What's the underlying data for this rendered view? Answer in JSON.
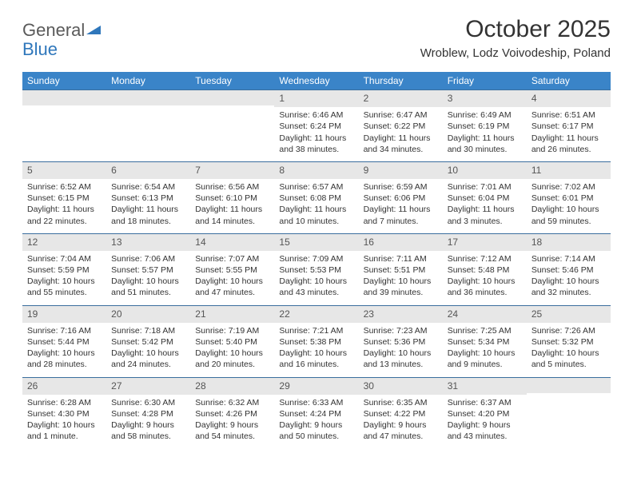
{
  "logo": {
    "line1": "General",
    "line2": "Blue"
  },
  "title": "October 2025",
  "location": "Wroblew, Lodz Voivodeship, Poland",
  "colors": {
    "header_bg": "#3a84c8",
    "header_text": "#ffffff",
    "daynum_bg": "#e7e7e7",
    "daynum_text": "#555555",
    "row_border": "#3a6e9e",
    "body_text": "#333333",
    "logo_gray": "#5a5a5a",
    "logo_blue": "#2f77bb",
    "page_bg": "#ffffff"
  },
  "typography": {
    "title_fontsize": 30,
    "location_fontsize": 15,
    "weekday_fontsize": 12,
    "daynum_fontsize": 12,
    "cell_fontsize": 10.5
  },
  "weekdays": [
    "Sunday",
    "Monday",
    "Tuesday",
    "Wednesday",
    "Thursday",
    "Friday",
    "Saturday"
  ],
  "weeks": [
    [
      {
        "num": "",
        "sunrise": "",
        "sunset": "",
        "daylight": ""
      },
      {
        "num": "",
        "sunrise": "",
        "sunset": "",
        "daylight": ""
      },
      {
        "num": "",
        "sunrise": "",
        "sunset": "",
        "daylight": ""
      },
      {
        "num": "1",
        "sunrise": "Sunrise: 6:46 AM",
        "sunset": "Sunset: 6:24 PM",
        "daylight": "Daylight: 11 hours and 38 minutes."
      },
      {
        "num": "2",
        "sunrise": "Sunrise: 6:47 AM",
        "sunset": "Sunset: 6:22 PM",
        "daylight": "Daylight: 11 hours and 34 minutes."
      },
      {
        "num": "3",
        "sunrise": "Sunrise: 6:49 AM",
        "sunset": "Sunset: 6:19 PM",
        "daylight": "Daylight: 11 hours and 30 minutes."
      },
      {
        "num": "4",
        "sunrise": "Sunrise: 6:51 AM",
        "sunset": "Sunset: 6:17 PM",
        "daylight": "Daylight: 11 hours and 26 minutes."
      }
    ],
    [
      {
        "num": "5",
        "sunrise": "Sunrise: 6:52 AM",
        "sunset": "Sunset: 6:15 PM",
        "daylight": "Daylight: 11 hours and 22 minutes."
      },
      {
        "num": "6",
        "sunrise": "Sunrise: 6:54 AM",
        "sunset": "Sunset: 6:13 PM",
        "daylight": "Daylight: 11 hours and 18 minutes."
      },
      {
        "num": "7",
        "sunrise": "Sunrise: 6:56 AM",
        "sunset": "Sunset: 6:10 PM",
        "daylight": "Daylight: 11 hours and 14 minutes."
      },
      {
        "num": "8",
        "sunrise": "Sunrise: 6:57 AM",
        "sunset": "Sunset: 6:08 PM",
        "daylight": "Daylight: 11 hours and 10 minutes."
      },
      {
        "num": "9",
        "sunrise": "Sunrise: 6:59 AM",
        "sunset": "Sunset: 6:06 PM",
        "daylight": "Daylight: 11 hours and 7 minutes."
      },
      {
        "num": "10",
        "sunrise": "Sunrise: 7:01 AM",
        "sunset": "Sunset: 6:04 PM",
        "daylight": "Daylight: 11 hours and 3 minutes."
      },
      {
        "num": "11",
        "sunrise": "Sunrise: 7:02 AM",
        "sunset": "Sunset: 6:01 PM",
        "daylight": "Daylight: 10 hours and 59 minutes."
      }
    ],
    [
      {
        "num": "12",
        "sunrise": "Sunrise: 7:04 AM",
        "sunset": "Sunset: 5:59 PM",
        "daylight": "Daylight: 10 hours and 55 minutes."
      },
      {
        "num": "13",
        "sunrise": "Sunrise: 7:06 AM",
        "sunset": "Sunset: 5:57 PM",
        "daylight": "Daylight: 10 hours and 51 minutes."
      },
      {
        "num": "14",
        "sunrise": "Sunrise: 7:07 AM",
        "sunset": "Sunset: 5:55 PM",
        "daylight": "Daylight: 10 hours and 47 minutes."
      },
      {
        "num": "15",
        "sunrise": "Sunrise: 7:09 AM",
        "sunset": "Sunset: 5:53 PM",
        "daylight": "Daylight: 10 hours and 43 minutes."
      },
      {
        "num": "16",
        "sunrise": "Sunrise: 7:11 AM",
        "sunset": "Sunset: 5:51 PM",
        "daylight": "Daylight: 10 hours and 39 minutes."
      },
      {
        "num": "17",
        "sunrise": "Sunrise: 7:12 AM",
        "sunset": "Sunset: 5:48 PM",
        "daylight": "Daylight: 10 hours and 36 minutes."
      },
      {
        "num": "18",
        "sunrise": "Sunrise: 7:14 AM",
        "sunset": "Sunset: 5:46 PM",
        "daylight": "Daylight: 10 hours and 32 minutes."
      }
    ],
    [
      {
        "num": "19",
        "sunrise": "Sunrise: 7:16 AM",
        "sunset": "Sunset: 5:44 PM",
        "daylight": "Daylight: 10 hours and 28 minutes."
      },
      {
        "num": "20",
        "sunrise": "Sunrise: 7:18 AM",
        "sunset": "Sunset: 5:42 PM",
        "daylight": "Daylight: 10 hours and 24 minutes."
      },
      {
        "num": "21",
        "sunrise": "Sunrise: 7:19 AM",
        "sunset": "Sunset: 5:40 PM",
        "daylight": "Daylight: 10 hours and 20 minutes."
      },
      {
        "num": "22",
        "sunrise": "Sunrise: 7:21 AM",
        "sunset": "Sunset: 5:38 PM",
        "daylight": "Daylight: 10 hours and 16 minutes."
      },
      {
        "num": "23",
        "sunrise": "Sunrise: 7:23 AM",
        "sunset": "Sunset: 5:36 PM",
        "daylight": "Daylight: 10 hours and 13 minutes."
      },
      {
        "num": "24",
        "sunrise": "Sunrise: 7:25 AM",
        "sunset": "Sunset: 5:34 PM",
        "daylight": "Daylight: 10 hours and 9 minutes."
      },
      {
        "num": "25",
        "sunrise": "Sunrise: 7:26 AM",
        "sunset": "Sunset: 5:32 PM",
        "daylight": "Daylight: 10 hours and 5 minutes."
      }
    ],
    [
      {
        "num": "26",
        "sunrise": "Sunrise: 6:28 AM",
        "sunset": "Sunset: 4:30 PM",
        "daylight": "Daylight: 10 hours and 1 minute."
      },
      {
        "num": "27",
        "sunrise": "Sunrise: 6:30 AM",
        "sunset": "Sunset: 4:28 PM",
        "daylight": "Daylight: 9 hours and 58 minutes."
      },
      {
        "num": "28",
        "sunrise": "Sunrise: 6:32 AM",
        "sunset": "Sunset: 4:26 PM",
        "daylight": "Daylight: 9 hours and 54 minutes."
      },
      {
        "num": "29",
        "sunrise": "Sunrise: 6:33 AM",
        "sunset": "Sunset: 4:24 PM",
        "daylight": "Daylight: 9 hours and 50 minutes."
      },
      {
        "num": "30",
        "sunrise": "Sunrise: 6:35 AM",
        "sunset": "Sunset: 4:22 PM",
        "daylight": "Daylight: 9 hours and 47 minutes."
      },
      {
        "num": "31",
        "sunrise": "Sunrise: 6:37 AM",
        "sunset": "Sunset: 4:20 PM",
        "daylight": "Daylight: 9 hours and 43 minutes."
      },
      {
        "num": "",
        "sunrise": "",
        "sunset": "",
        "daylight": ""
      }
    ]
  ]
}
